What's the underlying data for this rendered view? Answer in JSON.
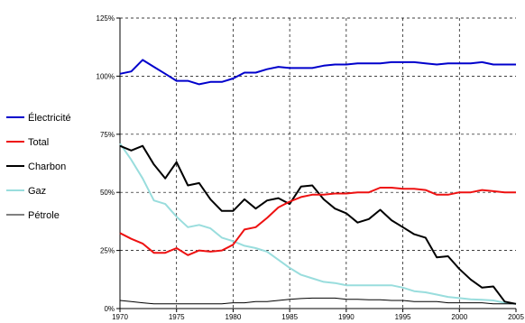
{
  "chart_data": {
    "type": "line",
    "title": "",
    "xlabel": "",
    "ylabel": "",
    "xlim": [
      1970,
      2005
    ],
    "ylim": [
      0,
      125
    ],
    "x_ticks": [
      1970,
      1975,
      1980,
      1985,
      1990,
      1995,
      2000,
      2005
    ],
    "x_tick_labels": [
      "1970",
      "1975",
      "1980",
      "1985",
      "1990",
      "1995",
      "2000",
      "2005"
    ],
    "y_ticks": [
      0,
      25,
      50,
      75,
      100,
      125
    ],
    "y_tick_labels": [
      "0%",
      "25%",
      "50%",
      "75%",
      "100%",
      "125%"
    ],
    "grid": "dashed",
    "legend_position": "left",
    "x": [
      1970,
      1971,
      1972,
      1973,
      1974,
      1975,
      1976,
      1977,
      1978,
      1979,
      1980,
      1981,
      1982,
      1983,
      1984,
      1985,
      1986,
      1987,
      1988,
      1989,
      1990,
      1991,
      1992,
      1993,
      1994,
      1995,
      1996,
      1997,
      1998,
      1999,
      2000,
      2001,
      2002,
      2003,
      2004,
      2005
    ],
    "series": [
      {
        "name": "Électricité",
        "color": "#0000cc",
        "width": 2,
        "values": [
          101,
          102,
          107,
          104,
          101,
          98,
          98,
          96.5,
          97.5,
          97.5,
          99,
          101.5,
          101.5,
          103,
          104,
          103.5,
          103.5,
          103.5,
          104.5,
          105,
          105,
          105.5,
          105.5,
          105.5,
          106,
          106,
          106,
          105.5,
          105,
          105.5,
          105.5,
          105.5,
          106,
          105,
          105,
          105
        ]
      },
      {
        "name": "Total",
        "color": "#ee1111",
        "width": 2,
        "values": [
          32.5,
          30,
          28,
          24,
          24,
          26,
          23,
          25,
          24.5,
          25,
          27.5,
          34,
          35,
          39,
          43.5,
          46,
          48,
          49,
          49,
          49.5,
          49.5,
          50,
          50,
          52,
          52,
          51.5,
          51.5,
          51,
          49,
          49,
          50,
          50,
          51,
          50.5,
          50,
          50
        ]
      },
      {
        "name": "Charbon",
        "color": "#000000",
        "width": 2,
        "values": [
          70,
          68,
          70,
          62,
          56,
          63,
          53,
          54,
          47,
          42,
          42,
          47,
          43,
          46.5,
          47.5,
          45,
          52.5,
          53,
          47,
          43,
          41,
          37,
          38.5,
          42.5,
          38,
          35,
          32,
          30.5,
          22,
          22.5,
          17,
          12.5,
          9,
          9.5,
          3,
          2
        ]
      },
      {
        "name": "Gaz",
        "color": "#99dddd",
        "width": 2,
        "values": [
          71,
          64,
          56,
          46.5,
          45,
          39.5,
          35,
          36,
          34.5,
          30.5,
          29,
          27,
          26,
          24.5,
          21,
          17.5,
          14.5,
          13,
          11.5,
          11,
          10,
          10,
          10,
          10,
          10,
          9,
          7.5,
          7,
          6,
          5,
          4.5,
          4,
          3.8,
          3.5,
          2.5,
          2
        ]
      },
      {
        "name": "Pétrole",
        "color": "#000000",
        "width": 1,
        "values": [
          3.5,
          3,
          2.5,
          2,
          2,
          2,
          2,
          2,
          2,
          2,
          2.5,
          2.5,
          3,
          3,
          3.5,
          4,
          4.3,
          4.5,
          4.5,
          4.5,
          4,
          4,
          3.8,
          3.8,
          3.5,
          3.5,
          3,
          3,
          3,
          2.5,
          2.5,
          2.5,
          2.5,
          2,
          2,
          2
        ]
      }
    ]
  }
}
